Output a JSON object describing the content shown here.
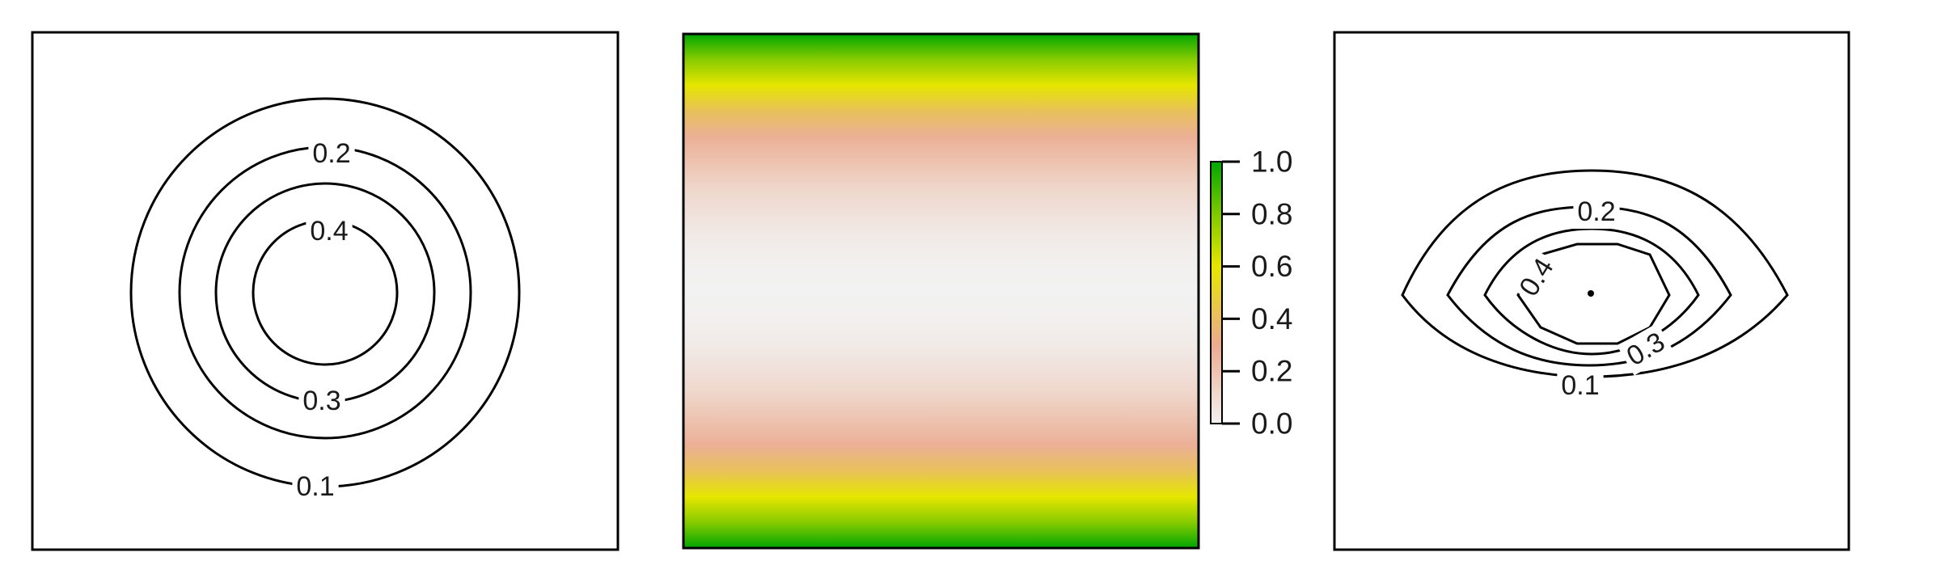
{
  "chart_data": [
    {
      "type": "contour",
      "panel": "left",
      "xlabel": "",
      "ylabel": "",
      "levels": [
        {
          "level": 0.1,
          "label": "0.1"
        },
        {
          "level": 0.2,
          "label": "0.2"
        },
        {
          "level": 0.3,
          "label": "0.3"
        },
        {
          "level": 0.4,
          "label": "0.4"
        }
      ]
    },
    {
      "type": "heatmap",
      "panel": "middle",
      "xlabel": "",
      "ylabel": "",
      "profile": {
        "y": [
          0.0,
          0.05,
          0.1,
          0.15,
          0.2,
          0.25,
          0.3,
          0.35,
          0.4,
          0.45,
          0.5,
          0.55,
          0.6,
          0.65,
          0.7,
          0.75,
          0.8,
          0.85,
          0.9,
          0.95,
          1.0
        ],
        "value": [
          1.0,
          0.78,
          0.6,
          0.42,
          0.28,
          0.2,
          0.12,
          0.07,
          0.03,
          0.01,
          0.0,
          0.01,
          0.03,
          0.07,
          0.12,
          0.2,
          0.28,
          0.42,
          0.6,
          0.78,
          1.0
        ]
      },
      "colorbar": {
        "range": [
          0.0,
          1.0
        ],
        "ticks": [
          {
            "value": 0.0,
            "label": "0.0"
          },
          {
            "value": 0.2,
            "label": "0.2"
          },
          {
            "value": 0.4,
            "label": "0.4"
          },
          {
            "value": 0.6,
            "label": "0.6"
          },
          {
            "value": 0.8,
            "label": "0.8"
          },
          {
            "value": 1.0,
            "label": "1.0"
          }
        ],
        "colors": [
          {
            "value": 0.0,
            "color": "#f2f2f2"
          },
          {
            "value": 0.3,
            "color": "#ebab8f"
          },
          {
            "value": 0.42,
            "color": "#e8c15a"
          },
          {
            "value": 0.6,
            "color": "#e6e600"
          },
          {
            "value": 0.8,
            "color": "#7ec800"
          },
          {
            "value": 1.0,
            "color": "#00a600"
          }
        ]
      }
    },
    {
      "type": "contour",
      "panel": "right",
      "xlabel": "",
      "ylabel": "",
      "levels": [
        {
          "level": 0.1,
          "label": "0.1"
        },
        {
          "level": 0.2,
          "label": "0.2"
        },
        {
          "level": 0.3,
          "label": "0.3"
        },
        {
          "level": 0.4,
          "label": "0.4"
        }
      ]
    }
  ]
}
